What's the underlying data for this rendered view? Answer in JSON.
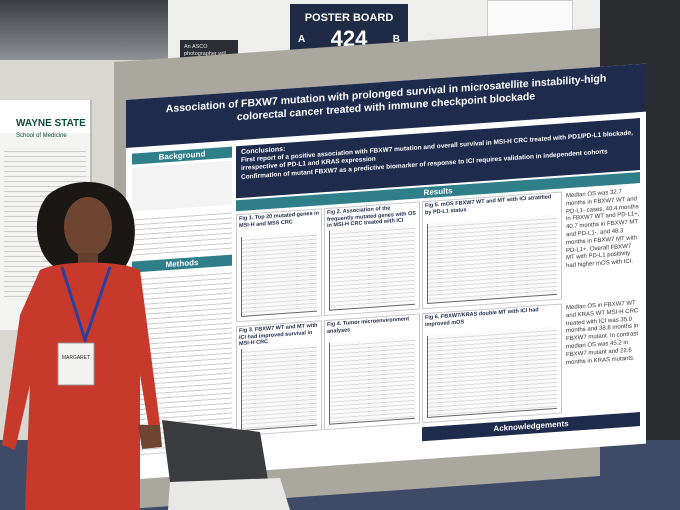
{
  "sign": {
    "label": "POSTER BOARD",
    "number": "424",
    "side_a": "A",
    "side_b": "B"
  },
  "photo_note": "An ASCO photographer will take photos for the Digital Program.",
  "side_poster": {
    "school": "WAYNE STATE",
    "subtitle": "School of Medicine"
  },
  "badge": "MARGARET",
  "poster": {
    "title": "Association of FBXW7 mutation with prolonged survival in microsatellite instability-high colorectal cancer treated with immune checkpoint blockade",
    "sections": {
      "background": "Background",
      "methods": "Methods",
      "results": "Results",
      "conclusions": "Conclusions:",
      "acknowledgements": "Acknowledgements"
    },
    "conclusions": [
      "First report of a positive association with FBXW7 mutation and overall survival in MSI-H CRC treated with PD1/PD-L1 blockade, irrespective of PD-L1 and KRAS expression",
      "Confirmation of mutant FBXW7 as a predictive biomarker of response to ICI requires validation in independent cohorts"
    ],
    "figures": [
      "Fig 1. Top 20 mutated genes in MSI-H and MSS CRC",
      "Fig 2. Association of the frequently mutated genes with OS in MSI-H CRC treated with ICI",
      "Fig 5. mOS FBXW7 WT and MT with ICI stratified by PD-L1 status",
      "Fig 3. FBXW7 WT and MT with ICI had improved survival in MSI-H CRC",
      "Fig 4. Tumor microenvironment analyses",
      "Fig 6. FBXW7/KRAS double MT with ICI had improved mOS"
    ],
    "results_text": [
      "Median OS was 32.7 months in FBXW7 WT and PD-L1- cases, 40.4 months in FBXW7 WT and PD-L1+, 40.7 months in FBXW7 MT and PD-L1-, and 48.3 months in FBXW7 MT with PD-L1+. Overall FBXW7 MT with PD-L1 positivity had higher mOS with ICI.",
      "Median OS in FBXW7 WT and KRAS WT MSI-H CRC treated with ICI was 35.0 months and 38.8 months in FBXW7 mutant. In contrast median OS was 45.2 in FBXW7 mutant and 22.6 months in KRAS mutants."
    ]
  }
}
